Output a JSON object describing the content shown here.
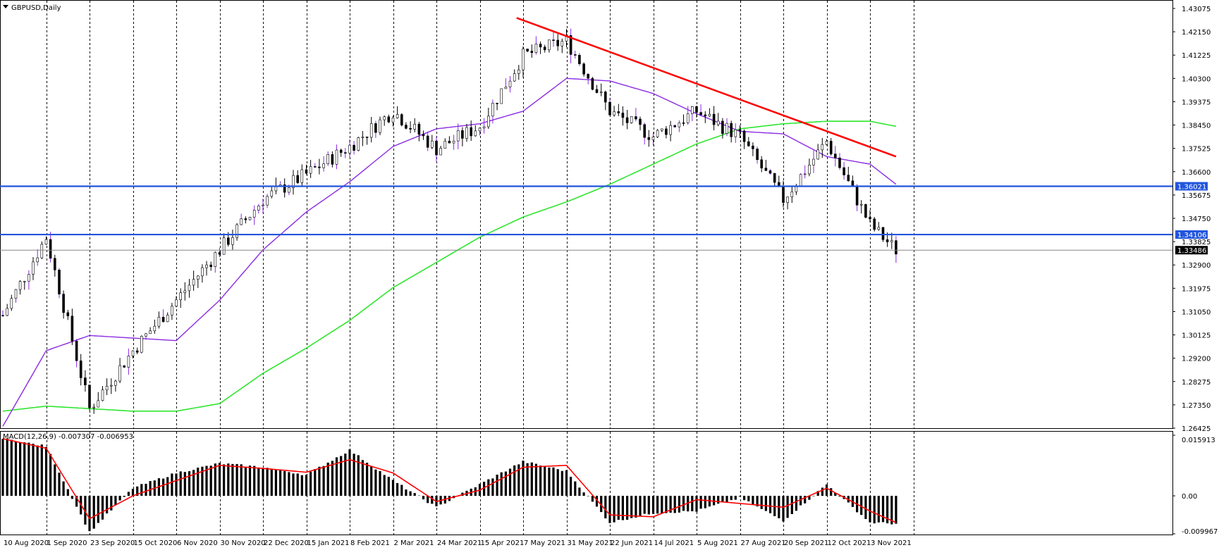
{
  "window": {
    "symbol_title": "GBPUSD,Daily",
    "indicator_title": "MACD(12,26,9) -0.007307 -0.006953"
  },
  "colors": {
    "background": "#ffffff",
    "grid": "#000000",
    "candles": "#000000",
    "candle_shadow_spikes": "#8a2be2",
    "ma_short": "#8a2be2",
    "ma_long": "#2ee62e",
    "trendline": "#ff0000",
    "hline": "#2255dd",
    "macd_signal": "#ff0000",
    "macd_hist": "#000000"
  },
  "chart_data": [
    {
      "type": "candlestick",
      "symbol": "GBPUSD",
      "timeframe": "Daily",
      "ylim": [
        1.26425,
        1.43075
      ],
      "y_ticks": [
        "1.43075",
        "1.42150",
        "1.41225",
        "1.40300",
        "1.39375",
        "1.38450",
        "1.37525",
        "1.36600",
        "1.35675",
        "1.34750",
        "1.33825",
        "1.32900",
        "1.31975",
        "1.31050",
        "1.30125",
        "1.29200",
        "1.28275",
        "1.27350",
        "1.26425"
      ],
      "x_labels": [
        "10 Aug 2020",
        "1 Sep 2020",
        "23 Sep 2020",
        "15 Oct 2020",
        "6 Nov 2020",
        "30 Nov 2020",
        "22 Dec 2020",
        "15 Jan 2021",
        "8 Feb 2021",
        "2 Mar 2021",
        "24 Mar 2021",
        "15 Apr 2021",
        "7 May 2021",
        "31 May 2021",
        "22 Jun 2021",
        "14 Jul 2021",
        "5 Aug 2021",
        "27 Aug 2021",
        "20 Sep 2021",
        "12 Oct 2021",
        "3 Nov 2021"
      ],
      "grid_vertical_dashed": true,
      "price_key_points": [
        {
          "date": "10 Aug 2020",
          "price": 1.309
        },
        {
          "date": "1 Sep 2020",
          "price": 1.34
        },
        {
          "date": "23 Sep 2020",
          "price": 1.272
        },
        {
          "date": "15 Oct 2020",
          "price": 1.295
        },
        {
          "date": "6 Nov 2020",
          "price": 1.315
        },
        {
          "date": "30 Nov 2020",
          "price": 1.335
        },
        {
          "date": "22 Dec 2020",
          "price": 1.355
        },
        {
          "date": "15 Jan 2021",
          "price": 1.365
        },
        {
          "date": "8 Feb 2021",
          "price": 1.376
        },
        {
          "date": "2 Mar 2021",
          "price": 1.39
        },
        {
          "date": "24 Mar 2021",
          "price": 1.375
        },
        {
          "date": "15 Apr 2021",
          "price": 1.384
        },
        {
          "date": "7 May 2021",
          "price": 1.412
        },
        {
          "date": "31 May 2021",
          "price": 1.418
        },
        {
          "date": "22 Jun 2021",
          "price": 1.39
        },
        {
          "date": "14 Jul 2021",
          "price": 1.38
        },
        {
          "date": "5 Aug 2021",
          "price": 1.39
        },
        {
          "date": "27 Aug 2021",
          "price": 1.38
        },
        {
          "date": "20 Sep 2021",
          "price": 1.355
        },
        {
          "date": "12 Oct 2021",
          "price": 1.378
        },
        {
          "date": "3 Nov 2021",
          "price": 1.345
        },
        {
          "date": "end",
          "price": 1.3349
        }
      ],
      "moving_averages": [
        {
          "color": "ma_short",
          "points": [
            [
              "10 Aug 2020",
              1.265
            ],
            [
              "1 Sep 2020",
              1.295
            ],
            [
              "23 Sep 2020",
              1.301
            ],
            [
              "15 Oct 2020",
              1.3
            ],
            [
              "6 Nov 2020",
              1.299
            ],
            [
              "30 Nov 2020",
              1.315
            ],
            [
              "22 Dec 2020",
              1.335
            ],
            [
              "15 Jan 2021",
              1.35
            ],
            [
              "8 Feb 2021",
              1.362
            ],
            [
              "2 Mar 2021",
              1.376
            ],
            [
              "24 Mar 2021",
              1.383
            ],
            [
              "15 Apr 2021",
              1.385
            ],
            [
              "7 May 2021",
              1.39
            ],
            [
              "31 May 2021",
              1.403
            ],
            [
              "22 Jun 2021",
              1.402
            ],
            [
              "14 Jul 2021",
              1.397
            ],
            [
              "5 Aug 2021",
              1.389
            ],
            [
              "27 Aug 2021",
              1.382
            ],
            [
              "20 Sep 2021",
              1.381
            ],
            [
              "12 Oct 2021",
              1.372
            ],
            [
              "3 Nov 2021",
              1.369
            ],
            [
              "end",
              1.361
            ]
          ]
        },
        {
          "color": "ma_long",
          "points": [
            [
              "10 Aug 2020",
              1.271
            ],
            [
              "1 Sep 2020",
              1.273
            ],
            [
              "23 Sep 2020",
              1.272
            ],
            [
              "15 Oct 2020",
              1.271
            ],
            [
              "6 Nov 2020",
              1.271
            ],
            [
              "30 Nov 2020",
              1.274
            ],
            [
              "22 Dec 2020",
              1.286
            ],
            [
              "15 Jan 2021",
              1.296
            ],
            [
              "8 Feb 2021",
              1.307
            ],
            [
              "2 Mar 2021",
              1.32
            ],
            [
              "24 Mar 2021",
              1.33
            ],
            [
              "15 Apr 2021",
              1.34
            ],
            [
              "7 May 2021",
              1.348
            ],
            [
              "31 May 2021",
              1.354
            ],
            [
              "22 Jun 2021",
              1.361
            ],
            [
              "14 Jul 2021",
              1.369
            ],
            [
              "5 Aug 2021",
              1.377
            ],
            [
              "27 Aug 2021",
              1.383
            ],
            [
              "20 Sep 2021",
              1.385
            ],
            [
              "12 Oct 2021",
              1.386
            ],
            [
              "3 Nov 2021",
              1.386
            ],
            [
              "end",
              1.384
            ]
          ]
        }
      ],
      "trendline": {
        "from": [
          "18 May 2021",
          1.427
        ],
        "to": [
          "end",
          1.372
        ]
      },
      "horizontal_levels": [
        {
          "price": 1.36021,
          "label": "1.36021"
        },
        {
          "price": 1.34106,
          "label": "1.34106"
        }
      ],
      "current_price": {
        "price": 1.33486,
        "label": "1.33486"
      }
    },
    {
      "type": "bar",
      "name": "MACD(12,26,9)",
      "values_shown": {
        "macd": -0.007307,
        "signal": -0.006953
      },
      "ylim": [
        -0.009967,
        0.015913
      ],
      "y_ticks": [
        "0.015913",
        "0.00",
        "-0.009967"
      ],
      "histogram_key_points": [
        [
          "10 Aug 2020",
          0.015
        ],
        [
          "1 Sep 2020",
          0.013
        ],
        [
          "23 Sep 2020",
          -0.0095
        ],
        [
          "15 Oct 2020",
          0.002
        ],
        [
          "6 Nov 2020",
          0.006
        ],
        [
          "30 Nov 2020",
          0.0085
        ],
        [
          "22 Dec 2020",
          0.0075
        ],
        [
          "15 Jan 2021",
          0.0055
        ],
        [
          "8 Feb 2021",
          0.012
        ],
        [
          "2 Mar 2021",
          0.004
        ],
        [
          "24 Mar 2021",
          -0.003
        ],
        [
          "15 Apr 2021",
          0.003
        ],
        [
          "7 May 2021",
          0.009
        ],
        [
          "31 May 2021",
          0.0065
        ],
        [
          "22 Jun 2021",
          -0.007
        ],
        [
          "14 Jul 2021",
          -0.0045
        ],
        [
          "5 Aug 2021",
          -0.004
        ],
        [
          "27 Aug 2021",
          -0.0005
        ],
        [
          "20 Sep 2021",
          -0.0065
        ],
        [
          "12 Oct 2021",
          0.003
        ],
        [
          "3 Nov 2021",
          -0.007
        ],
        [
          "end",
          -0.0073
        ]
      ],
      "signal_key_points": [
        [
          "10 Aug 2020",
          0.015
        ],
        [
          "1 Sep 2020",
          0.0125
        ],
        [
          "23 Sep 2020",
          -0.006
        ],
        [
          "15 Oct 2020",
          0.0
        ],
        [
          "6 Nov 2020",
          0.004
        ],
        [
          "30 Nov 2020",
          0.008
        ],
        [
          "22 Dec 2020",
          0.0072
        ],
        [
          "15 Jan 2021",
          0.0062
        ],
        [
          "8 Feb 2021",
          0.0095
        ],
        [
          "2 Mar 2021",
          0.006
        ],
        [
          "24 Mar 2021",
          -0.0015
        ],
        [
          "15 Apr 2021",
          0.0015
        ],
        [
          "7 May 2021",
          0.0075
        ],
        [
          "31 May 2021",
          0.008
        ],
        [
          "22 Jun 2021",
          -0.005
        ],
        [
          "14 Jul 2021",
          -0.0055
        ],
        [
          "5 Aug 2021",
          -0.001
        ],
        [
          "27 Aug 2021",
          -0.002
        ],
        [
          "20 Sep 2021",
          -0.003
        ],
        [
          "12 Oct 2021",
          0.002
        ],
        [
          "3 Nov 2021",
          -0.004
        ],
        [
          "end",
          -0.007
        ]
      ]
    }
  ]
}
